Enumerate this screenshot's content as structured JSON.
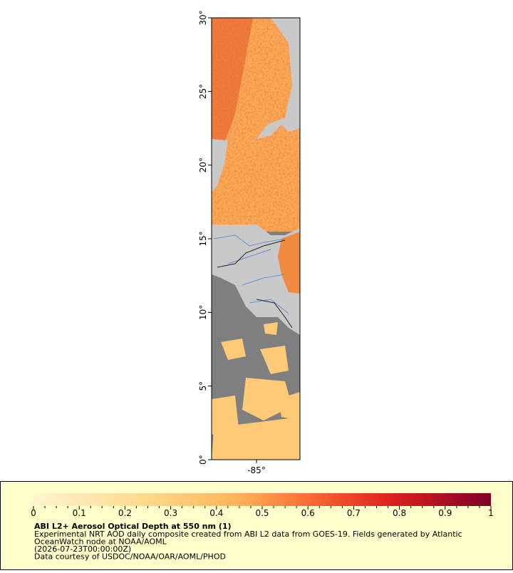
{
  "map": {
    "latlim": [
      0,
      30
    ],
    "lat_ticks": [
      {
        "value": 0,
        "label": "0°"
      },
      {
        "value": 5,
        "label": "5°"
      },
      {
        "value": 10,
        "label": "10°"
      },
      {
        "value": 15,
        "label": "15°"
      },
      {
        "value": 20,
        "label": "20°"
      },
      {
        "value": 25,
        "label": "25°"
      },
      {
        "value": 30,
        "label": "30°"
      }
    ],
    "lonlim": [
      -88.05,
      -82.05
    ],
    "lon_ticks": [
      {
        "value": -85,
        "label": "-85°"
      }
    ]
  },
  "colorbar": {
    "range": [
      0,
      1
    ],
    "ticks": [
      0,
      0.1,
      0.2,
      0.3,
      0.4,
      0.5,
      0.6,
      0.7,
      0.8,
      0.9,
      1
    ]
  },
  "caption": {
    "title": "ABI L2+ Aerosol Optical Depth at 550 nm (1)",
    "lines": [
      "Experimental NRT AOD daily composite created from ABI L2 data from GOES-19. Fields generated by Atlantic",
      "OceanWatch node at NOAA/AOML",
      "(2026-07-23T00:00:00Z)",
      "Data courtesy of USDOC/NOAA/OAR/AOML/PHOD"
    ]
  }
}
